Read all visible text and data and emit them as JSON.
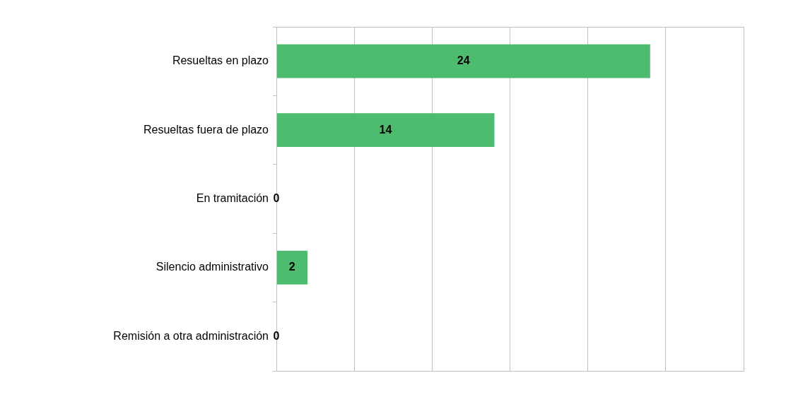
{
  "chart_data": {
    "type": "bar",
    "orientation": "horizontal",
    "categories": [
      "Resueltas en plazo",
      "Resueltas fuera de plazo",
      "En tramitación",
      "Silencio administrativo",
      "Remisión a otra administración"
    ],
    "values": [
      24,
      14,
      0,
      2,
      0
    ],
    "color": "#4ebc6f",
    "xlim": [
      0,
      30
    ],
    "xticks": [
      {
        "value": 0,
        "label": null
      },
      {
        "value": 5,
        "label": null
      },
      {
        "value": 10,
        "label": null
      },
      {
        "value": 15,
        "label": null
      },
      {
        "value": 20,
        "label": null
      },
      {
        "value": 25,
        "label": null
      },
      {
        "value": 30,
        "label": null
      }
    ],
    "tick_labels": "y",
    "grid": "x",
    "data_labels": true,
    "legend": false
  }
}
